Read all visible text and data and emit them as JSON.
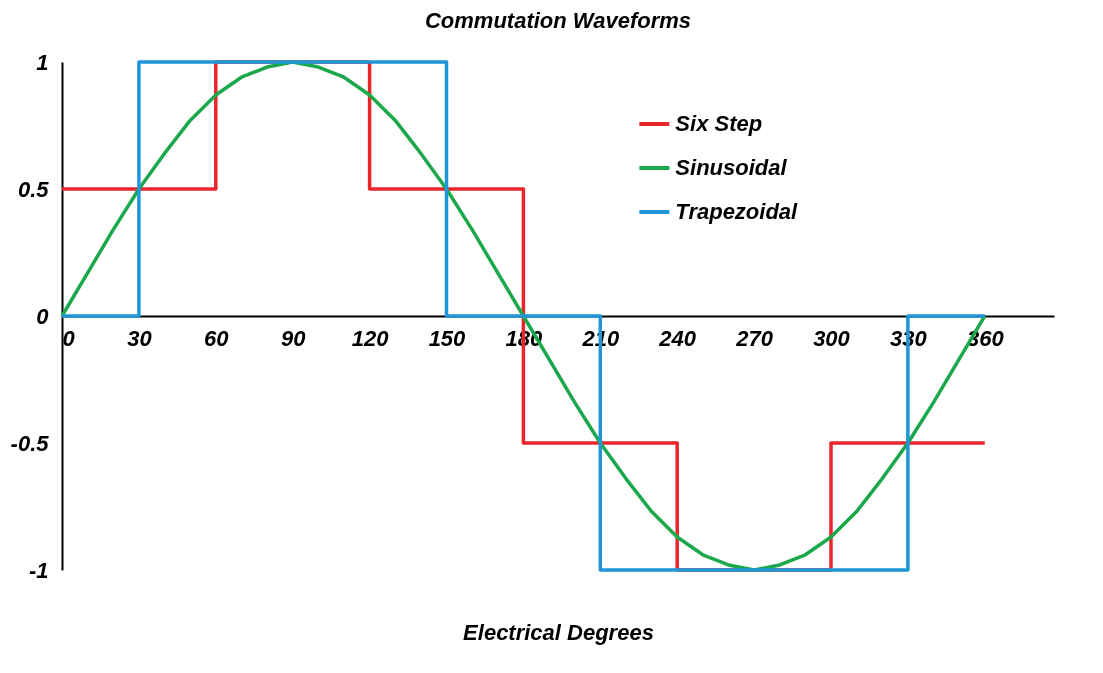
{
  "chart_data": {
    "type": "line",
    "title": "Commutation Waveforms",
    "xlabel": "Electrical Degrees",
    "xlim": [
      0,
      387
    ],
    "xticks": [
      0,
      30,
      60,
      90,
      120,
      150,
      180,
      210,
      240,
      270,
      300,
      330,
      360
    ],
    "ylim": [
      -1,
      1
    ],
    "yticks": [
      -1,
      -0.5,
      0,
      0.5,
      1
    ],
    "legend": "top right",
    "marker": "none",
    "line_style": "solid",
    "series": [
      {
        "name": "Six Step",
        "type": "step",
        "color": "#e8262b",
        "x": [
          0,
          60,
          120,
          180,
          240,
          300,
          360
        ],
        "values": [
          0.5,
          1,
          0.5,
          -0.5,
          -1,
          -0.5,
          -0.5
        ]
      },
      {
        "name": "Sinusoidal",
        "color": "#1aa84b",
        "x": [
          0,
          10,
          20,
          30,
          40,
          50,
          60,
          70,
          80,
          90,
          100,
          110,
          120,
          130,
          140,
          150,
          160,
          170,
          180,
          190,
          200,
          210,
          220,
          230,
          240,
          250,
          260,
          270,
          280,
          290,
          300,
          310,
          320,
          330,
          340,
          350,
          360
        ],
        "values": [
          0,
          0.17,
          0.34,
          0.5,
          0.64,
          0.77,
          0.87,
          0.94,
          0.98,
          1,
          0.98,
          0.94,
          0.87,
          0.77,
          0.64,
          0.5,
          0.34,
          0.17,
          0,
          -0.17,
          -0.34,
          -0.5,
          -0.64,
          -0.77,
          -0.87,
          -0.94,
          -0.98,
          -1,
          -0.98,
          -0.94,
          -0.87,
          -0.77,
          -0.64,
          -0.5,
          -0.34,
          -0.17,
          0
        ]
      },
      {
        "name": "Trapezoidal",
        "type": "step",
        "color": "#1e96d8",
        "x": [
          0,
          30,
          150,
          210,
          330,
          360
        ],
        "values": [
          0,
          1,
          0,
          -1,
          0,
          0
        ]
      }
    ]
  }
}
